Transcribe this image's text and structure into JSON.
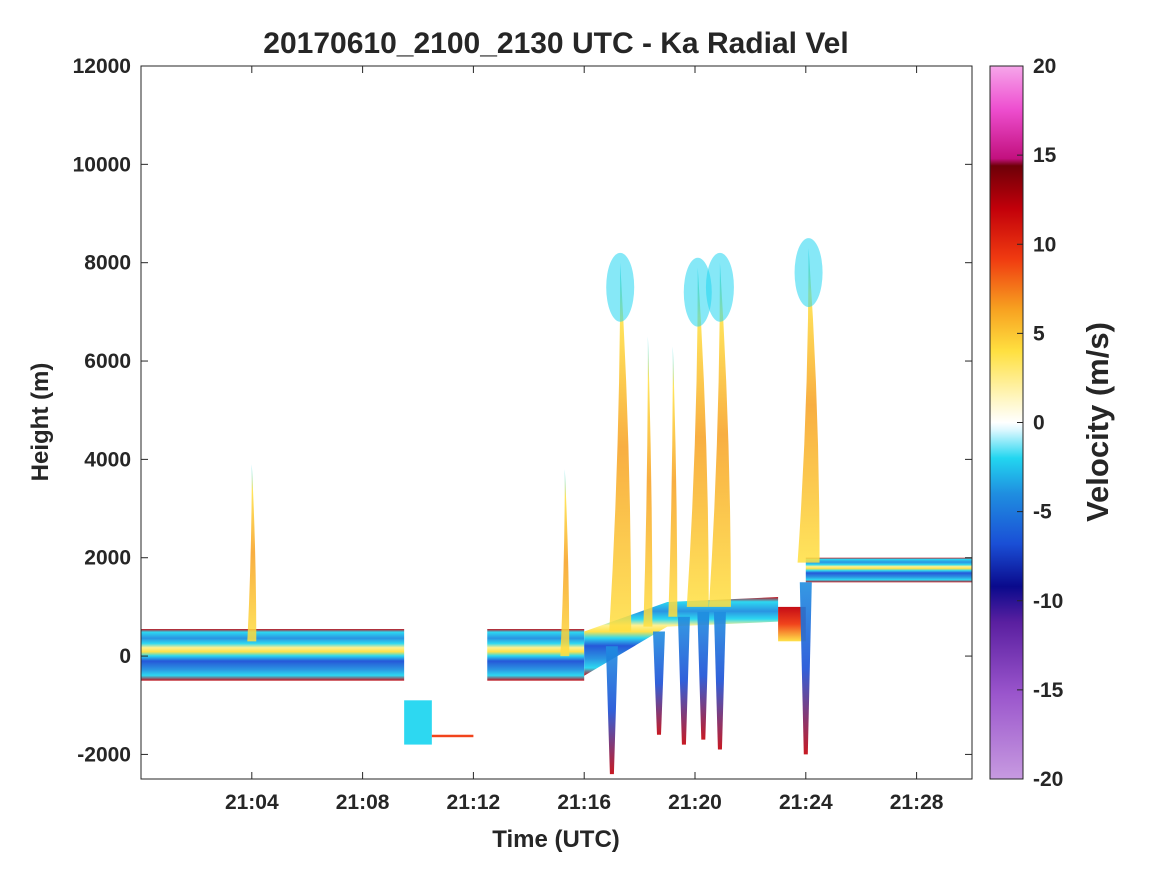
{
  "chart_data": {
    "type": "heatmap",
    "title": "20170610_2100_2130 UTC - Ka Radial Vel",
    "xlabel": "Time (UTC)",
    "ylabel": "Height (m)",
    "xlim": [
      "21:00",
      "21:30"
    ],
    "ylim": [
      -2500,
      12000
    ],
    "x_ticks": [
      "21:04",
      "21:08",
      "21:12",
      "21:16",
      "21:20",
      "21:24",
      "21:28"
    ],
    "y_ticks": [
      -2000,
      0,
      2000,
      4000,
      6000,
      8000,
      10000,
      12000
    ],
    "colorbar": {
      "label": "Velocity (m/s)",
      "range": [
        -20,
        20
      ],
      "ticks": [
        -20,
        -15,
        -10,
        -5,
        0,
        5,
        10,
        15,
        20
      ]
    },
    "layers": [
      {
        "t_start": "21:00",
        "t_end": "21:09.5",
        "base_m": -500,
        "top_m": 550,
        "velocity_ms": -3
      },
      {
        "t_start": "21:09.5",
        "t_end": "21:10.5",
        "base_m": -1800,
        "top_m": -900,
        "velocity_ms": -3
      },
      {
        "t_start": "21:10.5",
        "t_end": "21:12",
        "base_m": -1650,
        "top_m": -1600,
        "velocity_ms": 5
      },
      {
        "t_start": "21:12.5",
        "t_end": "21:16",
        "base_m": -500,
        "top_m": 550,
        "velocity_ms": -3
      },
      {
        "t_start": "21:16",
        "t_end": "21:23",
        "base_m": 0,
        "top_m": 1400,
        "velocity_ms": -4
      },
      {
        "t_start": "21:23",
        "t_end": "21:24",
        "base_m": 300,
        "top_m": 1000,
        "velocity_ms": 14
      },
      {
        "t_start": "21:24",
        "t_end": "21:30",
        "base_m": 1500,
        "top_m": 2000,
        "velocity_ms": -2
      }
    ],
    "plumes": [
      {
        "time": "21:04",
        "base_m": 300,
        "top_m": 3900,
        "velocity_ms": 6
      },
      {
        "time": "21:15.3",
        "base_m": 0,
        "top_m": 3800,
        "velocity_ms": 5
      },
      {
        "time": "21:17.3",
        "base_m": 500,
        "top_m": 8000,
        "velocity_ms": 4
      },
      {
        "time": "21:18.3",
        "base_m": 600,
        "top_m": 6500,
        "velocity_ms": 5
      },
      {
        "time": "21:19.2",
        "base_m": 800,
        "top_m": 6300,
        "velocity_ms": 6
      },
      {
        "time": "21:20.1",
        "base_m": 1000,
        "top_m": 7900,
        "velocity_ms": 4
      },
      {
        "time": "21:20.9",
        "base_m": 1000,
        "top_m": 8000,
        "velocity_ms": 5
      },
      {
        "time": "21:24.1",
        "base_m": 1900,
        "top_m": 8300,
        "velocity_ms": 8
      }
    ],
    "downdrafts": [
      {
        "time": "21:17.0",
        "top_m": 200,
        "bottom_m": -2400,
        "velocity_ms": -9
      },
      {
        "time": "21:18.7",
        "top_m": 500,
        "bottom_m": -1600,
        "velocity_ms": -9
      },
      {
        "time": "21:19.6",
        "top_m": 800,
        "bottom_m": -1800,
        "velocity_ms": -9
      },
      {
        "time": "21:20.3",
        "top_m": 900,
        "bottom_m": -1700,
        "velocity_ms": -10
      },
      {
        "time": "21:20.9",
        "top_m": 900,
        "bottom_m": -1900,
        "velocity_ms": -9
      },
      {
        "time": "21:24.0",
        "top_m": 1500,
        "bottom_m": -2000,
        "velocity_ms": -10
      }
    ]
  },
  "colors": {
    "text": "#262626",
    "axis": "#262626",
    "colormap": [
      "#c79ae0",
      "#9a55cc",
      "#5a1fa0",
      "#0a0a8c",
      "#1a4fd6",
      "#1f8ee0",
      "#22d6f0",
      "#ffffff",
      "#fff08a",
      "#f7b520",
      "#ee4a10",
      "#c2000a",
      "#7a0008",
      "#e01ca0",
      "#f6a2e6"
    ]
  }
}
